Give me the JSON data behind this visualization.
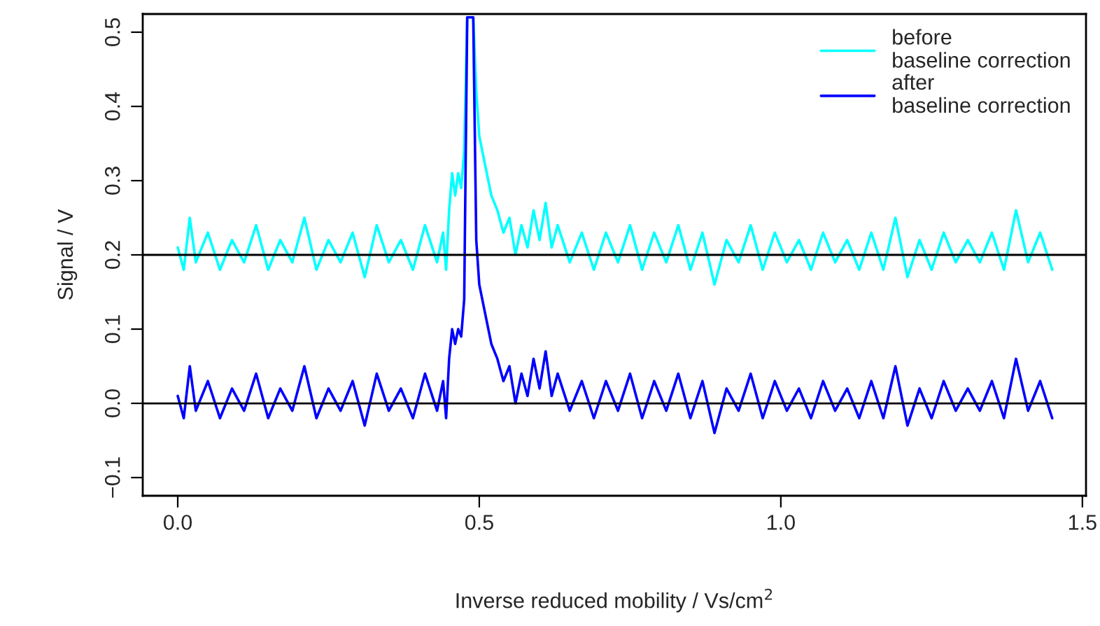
{
  "chart_data": {
    "type": "line",
    "xlabel": "Inverse reduced mobility / Vs/cm$^{2}$",
    "ylabel": "Signal / V",
    "xlim": [
      -0.058,
      1.506
    ],
    "ylim": [
      -0.1245,
      0.5245
    ],
    "xticks": [
      {
        "value": 0,
        "label": "0.0"
      },
      {
        "value": 0.5,
        "label": "0.5"
      },
      {
        "value": 1,
        "label": "1.0"
      },
      {
        "value": 1.5,
        "label": "1.5"
      }
    ],
    "yticks": [
      {
        "value": -0.1,
        "label": "−0.1"
      },
      {
        "value": 0,
        "label": "0.0"
      },
      0.1,
      0.2,
      0.3,
      0.4,
      0.5
    ],
    "grid": false,
    "legend": "top right",
    "ref_lines": [
      {
        "axis": "y",
        "value": 0.2,
        "color": "#000000"
      },
      {
        "axis": "y",
        "value": 0,
        "color": "#000000"
      }
    ],
    "x": [
      0.0,
      0.01,
      0.02,
      0.03,
      0.05,
      0.07,
      0.09,
      0.11,
      0.13,
      0.15,
      0.17,
      0.19,
      0.21,
      0.23,
      0.25,
      0.27,
      0.29,
      0.31,
      0.33,
      0.35,
      0.37,
      0.39,
      0.41,
      0.43,
      0.44,
      0.445,
      0.45,
      0.455,
      0.46,
      0.465,
      0.47,
      0.475,
      0.48,
      0.49,
      0.495,
      0.5,
      0.51,
      0.52,
      0.53,
      0.54,
      0.55,
      0.56,
      0.57,
      0.58,
      0.59,
      0.6,
      0.61,
      0.62,
      0.63,
      0.65,
      0.67,
      0.69,
      0.71,
      0.73,
      0.75,
      0.77,
      0.79,
      0.81,
      0.83,
      0.85,
      0.87,
      0.89,
      0.91,
      0.93,
      0.95,
      0.97,
      0.99,
      1.01,
      1.03,
      1.05,
      1.07,
      1.09,
      1.11,
      1.13,
      1.15,
      1.17,
      1.19,
      1.21,
      1.23,
      1.25,
      1.27,
      1.29,
      1.31,
      1.33,
      1.35,
      1.37,
      1.39,
      1.41,
      1.43,
      1.45
    ],
    "series": [
      {
        "name": "before\nbaseline correction",
        "color": "#00ffff",
        "values": [
          0.21,
          0.18,
          0.25,
          0.19,
          0.23,
          0.18,
          0.22,
          0.19,
          0.24,
          0.18,
          0.22,
          0.19,
          0.25,
          0.18,
          0.22,
          0.19,
          0.23,
          0.17,
          0.24,
          0.19,
          0.22,
          0.18,
          0.24,
          0.19,
          0.23,
          0.18,
          0.26,
          0.31,
          0.28,
          0.31,
          0.29,
          0.34,
          0.52,
          0.52,
          0.42,
          0.36,
          0.32,
          0.28,
          0.26,
          0.23,
          0.25,
          0.2,
          0.24,
          0.21,
          0.26,
          0.22,
          0.27,
          0.21,
          0.24,
          0.19,
          0.23,
          0.18,
          0.23,
          0.19,
          0.24,
          0.18,
          0.23,
          0.19,
          0.24,
          0.18,
          0.23,
          0.16,
          0.22,
          0.19,
          0.24,
          0.18,
          0.23,
          0.19,
          0.22,
          0.18,
          0.23,
          0.19,
          0.22,
          0.18,
          0.23,
          0.18,
          0.25,
          0.17,
          0.22,
          0.18,
          0.23,
          0.19,
          0.22,
          0.19,
          0.23,
          0.18,
          0.26,
          0.19,
          0.23,
          0.18
        ]
      },
      {
        "name": "after\nbaseline correction",
        "color": "#0000ff",
        "values": [
          0.01,
          -0.02,
          0.05,
          -0.01,
          0.03,
          -0.02,
          0.02,
          -0.01,
          0.04,
          -0.02,
          0.02,
          -0.01,
          0.05,
          -0.02,
          0.02,
          -0.01,
          0.03,
          -0.03,
          0.04,
          -0.01,
          0.02,
          -0.02,
          0.04,
          -0.01,
          0.03,
          -0.02,
          0.06,
          0.1,
          0.08,
          0.1,
          0.09,
          0.14,
          0.52,
          0.52,
          0.22,
          0.16,
          0.12,
          0.08,
          0.06,
          0.03,
          0.05,
          0.0,
          0.04,
          0.01,
          0.06,
          0.02,
          0.07,
          0.01,
          0.04,
          -0.01,
          0.03,
          -0.02,
          0.03,
          -0.01,
          0.04,
          -0.02,
          0.03,
          -0.01,
          0.04,
          -0.02,
          0.03,
          -0.04,
          0.02,
          -0.01,
          0.04,
          -0.02,
          0.03,
          -0.01,
          0.02,
          -0.02,
          0.03,
          -0.01,
          0.02,
          -0.02,
          0.03,
          -0.02,
          0.05,
          -0.03,
          0.02,
          -0.02,
          0.03,
          -0.01,
          0.02,
          -0.01,
          0.03,
          -0.02,
          0.06,
          -0.01,
          0.03,
          -0.02
        ]
      }
    ]
  }
}
